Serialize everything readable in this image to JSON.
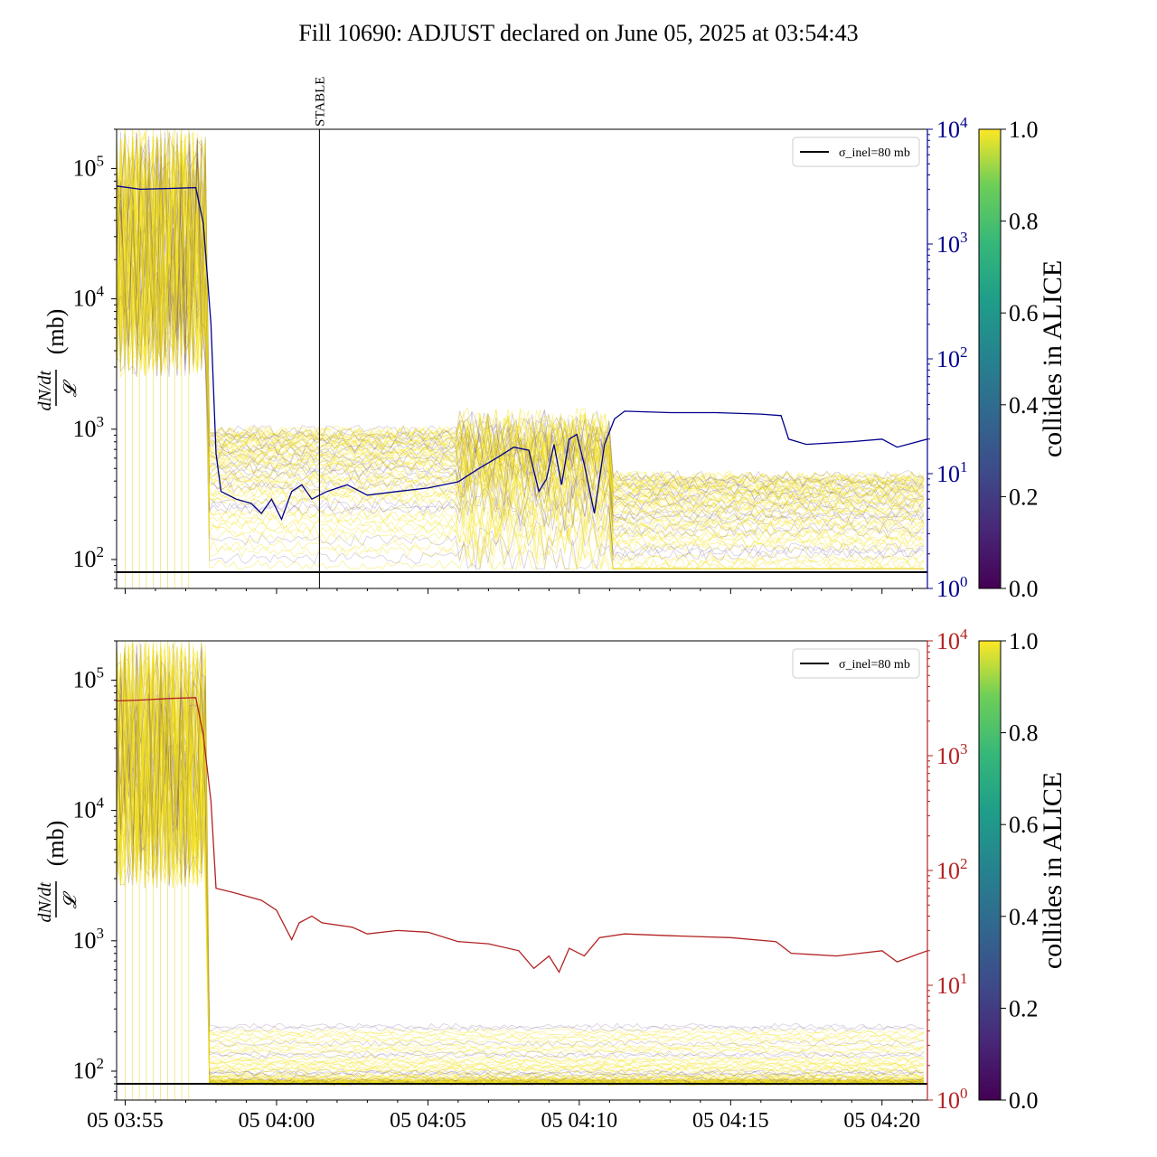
{
  "title": "Fill 10690: ADJUST declared on June 05, 2025 at 03:54:43",
  "x_tick_labels": [
    "05 03:55",
    "05 04:00",
    "05 04:05",
    "05 04:10",
    "05 04:15",
    "05 04:20"
  ],
  "y_left_tick_labels": [
    "10^2",
    "10^3",
    "10^4",
    "10^5"
  ],
  "y_right_tick_labels": [
    "10^0",
    "10^1",
    "10^2",
    "10^3",
    "10^4"
  ],
  "y_left_label": "dN/dt / 𝓛 (mb)",
  "colorbar_label": "collides in ALICE",
  "colorbar_ticks": [
    "0.0",
    "0.2",
    "0.4",
    "0.6",
    "0.8",
    "1.0"
  ],
  "legend_label": "σ_inel=80 mb",
  "stable_label": "STABLE",
  "colors": {
    "top_right_axis": "#00008b",
    "bottom_right_axis": "#b22222",
    "band_yellow": "#f4e21a",
    "band_dark": "#5b3a78",
    "reference_line": "#000000"
  },
  "chart_data": [
    {
      "type": "line",
      "panel": "top",
      "x_type": "time",
      "xlim": [
        "2025-06-05 03:54:43",
        "2025-06-05 04:21:30"
      ],
      "y_scale": "log",
      "ylim_left": [
        60,
        200000
      ],
      "ylim_right": [
        1,
        10000
      ],
      "reference_line_value_mb": 80,
      "vertical_marker": {
        "label": "STABLE",
        "time": "2025-06-05 04:01:25"
      },
      "right_axis_series": {
        "color": "#00008b",
        "points": [
          [
            "03:54:43",
            3200
          ],
          [
            "03:55:30",
            3000
          ],
          [
            "03:56:30",
            3050
          ],
          [
            "03:57:20",
            3100
          ],
          [
            "03:57:35",
            1500
          ],
          [
            "03:57:50",
            200
          ],
          [
            "03:58:00",
            15
          ],
          [
            "03:58:10",
            7
          ],
          [
            "03:58:40",
            6
          ],
          [
            "03:59:10",
            5.5
          ],
          [
            "03:59:30",
            4.5
          ],
          [
            "03:59:50",
            6
          ],
          [
            "04:00:10",
            4
          ],
          [
            "04:00:30",
            7
          ],
          [
            "04:00:50",
            8
          ],
          [
            "04:01:10",
            6
          ],
          [
            "04:01:40",
            7
          ],
          [
            "04:02:20",
            8
          ],
          [
            "04:03:00",
            6.5
          ],
          [
            "04:04:00",
            7
          ],
          [
            "04:05:00",
            7.5
          ],
          [
            "04:06:00",
            8.5
          ],
          [
            "04:06:40",
            11
          ],
          [
            "04:07:20",
            14
          ],
          [
            "04:07:50",
            17
          ],
          [
            "04:08:20",
            16
          ],
          [
            "04:08:40",
            7
          ],
          [
            "04:08:55",
            9
          ],
          [
            "04:09:10",
            18
          ],
          [
            "04:09:25",
            8
          ],
          [
            "04:09:40",
            20
          ],
          [
            "04:09:55",
            22
          ],
          [
            "04:10:10",
            12
          ],
          [
            "04:10:30",
            4.5
          ],
          [
            "04:10:50",
            18
          ],
          [
            "04:11:10",
            30
          ],
          [
            "04:11:30",
            35
          ],
          [
            "04:13:00",
            34
          ],
          [
            "04:14:30",
            34
          ],
          [
            "04:16:00",
            33
          ],
          [
            "04:16:40",
            32
          ],
          [
            "04:16:55",
            20
          ],
          [
            "04:17:30",
            18
          ],
          [
            "04:19:00",
            19
          ],
          [
            "04:20:00",
            20
          ],
          [
            "04:20:30",
            17
          ],
          [
            "04:21:30",
            20
          ]
        ]
      },
      "colorbar": {
        "label": "collides in ALICE",
        "range": [
          0,
          1
        ],
        "colormap": "viridis"
      }
    },
    {
      "type": "line",
      "panel": "bottom",
      "x_type": "time",
      "xlim": [
        "2025-06-05 03:54:43",
        "2025-06-05 04:21:30"
      ],
      "y_scale": "log",
      "ylim_left": [
        60,
        200000
      ],
      "ylim_right": [
        1,
        10000
      ],
      "reference_line_value_mb": 80,
      "right_axis_series": {
        "color": "#b22222",
        "points": [
          [
            "03:54:43",
            3000
          ],
          [
            "03:55:30",
            3050
          ],
          [
            "03:56:30",
            3150
          ],
          [
            "03:57:20",
            3200
          ],
          [
            "03:57:35",
            1500
          ],
          [
            "03:57:50",
            400
          ],
          [
            "03:58:00",
            70
          ],
          [
            "03:58:30",
            65
          ],
          [
            "03:59:30",
            55
          ],
          [
            "04:00:00",
            45
          ],
          [
            "04:00:30",
            25
          ],
          [
            "04:00:45",
            35
          ],
          [
            "04:01:10",
            40
          ],
          [
            "04:01:30",
            35
          ],
          [
            "04:02:30",
            32
          ],
          [
            "04:03:00",
            28
          ],
          [
            "04:04:00",
            30
          ],
          [
            "04:05:00",
            29
          ],
          [
            "04:06:00",
            24
          ],
          [
            "04:07:00",
            23
          ],
          [
            "04:08:00",
            20
          ],
          [
            "04:08:30",
            14
          ],
          [
            "04:09:00",
            18
          ],
          [
            "04:09:20",
            13
          ],
          [
            "04:09:40",
            21
          ],
          [
            "04:10:10",
            18
          ],
          [
            "04:10:40",
            26
          ],
          [
            "04:11:30",
            28
          ],
          [
            "04:13:00",
            27
          ],
          [
            "04:15:00",
            26
          ],
          [
            "04:16:30",
            24
          ],
          [
            "04:17:00",
            19
          ],
          [
            "04:18:30",
            18
          ],
          [
            "04:20:00",
            20
          ],
          [
            "04:20:30",
            16
          ],
          [
            "04:21:30",
            20
          ]
        ]
      },
      "colorbar": {
        "label": "collides in ALICE",
        "range": [
          0,
          1
        ],
        "colormap": "viridis"
      }
    }
  ]
}
